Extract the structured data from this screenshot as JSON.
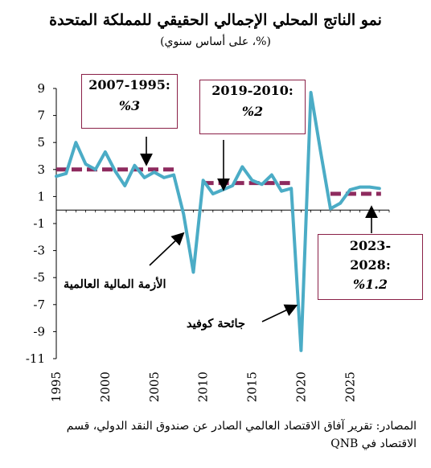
{
  "chart_data": {
    "type": "line",
    "title": "نمو الناتج المحلي الإجمالي الحقيقي للمملكة المتحدة",
    "subtitle": "(%، على أساس سنوي)",
    "x": [
      1995,
      1996,
      1997,
      1998,
      1999,
      2000,
      2001,
      2002,
      2003,
      2004,
      2005,
      2006,
      2007,
      2008,
      2009,
      2010,
      2011,
      2012,
      2013,
      2014,
      2015,
      2016,
      2017,
      2018,
      2019,
      2020,
      2021,
      2022,
      2023,
      2024,
      2025,
      2026,
      2027,
      2028
    ],
    "series": [
      {
        "values": [
          2.5,
          2.7,
          5.0,
          3.4,
          3.0,
          4.3,
          2.9,
          1.8,
          3.3,
          2.4,
          2.8,
          2.4,
          2.6,
          -0.3,
          -4.6,
          2.2,
          1.2,
          1.5,
          1.8,
          3.2,
          2.2,
          1.9,
          2.6,
          1.4,
          1.6,
          -10.4,
          8.7,
          4.3,
          0.1,
          0.5,
          1.5,
          1.7,
          1.7,
          1.6
        ],
        "color": "#4bacc6"
      }
    ],
    "averages": [
      {
        "from": 1995,
        "to": 2007,
        "value": 3.0,
        "color": "#8e2a5e"
      },
      {
        "from": 2010,
        "to": 2019,
        "value": 2.0,
        "color": "#8e2a5e"
      },
      {
        "from": 2023,
        "to": 2028,
        "value": 1.2,
        "color": "#8e2a5e"
      }
    ],
    "xlim": [
      1995,
      2029
    ],
    "ylim": [
      -11,
      9
    ],
    "xticks": [
      "1995",
      "2000",
      "2005",
      "2010",
      "2015",
      "2020",
      "2025"
    ],
    "yticks": [
      "9",
      "7",
      "5",
      "3",
      "1",
      "-1",
      "-3",
      "-5",
      "-7",
      "-9",
      "-11"
    ],
    "grid": false,
    "annotations": {
      "box1_line1": ":2007-1995",
      "box1_line2": "%3",
      "box2_line1": ":2019-2010",
      "box2_line2": "%2",
      "box3_line1": "-2023",
      "box3_line2": ":2028",
      "box3_line3": "%1.2",
      "crisis_label": "الأزمة المالية العالمية",
      "covid_label": "جائحة كوفيد"
    }
  },
  "source_line1": "المصادر: تقرير آفاق الاقتصاد العالمي الصادر عن صندوق النقد الدولي، قسم",
  "source_line2": "الاقتصاد في QNB"
}
